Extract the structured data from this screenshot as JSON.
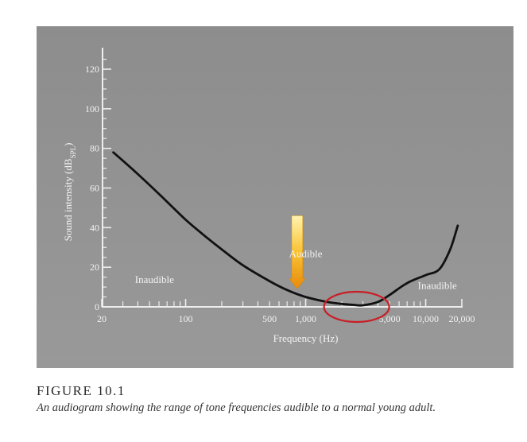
{
  "figure": {
    "label": "FIGURE 10.1",
    "caption": "An audiogram showing the range of tone frequencies audible to a normal young adult."
  },
  "chart_data": {
    "type": "line",
    "title": "",
    "xlabel": "Frequency (Hz)",
    "ylabel": "Sound intensity (dB",
    "ylabel_sub": "SPL",
    "ylabel_close": ")",
    "x_scale": "log",
    "xlim": [
      20,
      20000
    ],
    "ylim": [
      0,
      120
    ],
    "x_tick_labels": [
      {
        "value": 20,
        "label": "20"
      },
      {
        "value": 100,
        "label": "100"
      },
      {
        "value": 500,
        "label": "500"
      },
      {
        "value": 1000,
        "label": "1,000"
      },
      {
        "value": 5000,
        "label": "5,000"
      },
      {
        "value": 10000,
        "label": "10,000"
      },
      {
        "value": 20000,
        "label": "20,000"
      }
    ],
    "y_ticks": [
      0,
      20,
      40,
      60,
      80,
      100,
      120
    ],
    "series": [
      {
        "x": [
          25,
          40,
          60,
          100,
          150,
          200,
          300,
          500,
          700,
          1000,
          1500,
          2000,
          2500,
          3000,
          4000,
          5000,
          7000,
          10000,
          13000,
          16000,
          18500
        ],
        "y": [
          78,
          67,
          57,
          44,
          35,
          29,
          21,
          13,
          8.5,
          5,
          2.5,
          1.5,
          1,
          0.8,
          2.5,
          6,
          12,
          16,
          19,
          29,
          41
        ],
        "color": "#111111"
      }
    ],
    "annotations": [
      {
        "text": "Inaudible",
        "x": 55,
        "y": 12
      },
      {
        "text": "Audible",
        "x": 1000,
        "y": 25
      },
      {
        "text": "Inaudible",
        "x": 12500,
        "y": 9
      }
    ],
    "highlight_ellipse": {
      "x_center": 2500,
      "y_center": 0,
      "color": "#c81e26"
    },
    "arrow": {
      "x": 850,
      "y_from": 46,
      "y_to": 9,
      "color": "#f5a623"
    },
    "background_color": "#8f8f8f",
    "grid": false
  }
}
